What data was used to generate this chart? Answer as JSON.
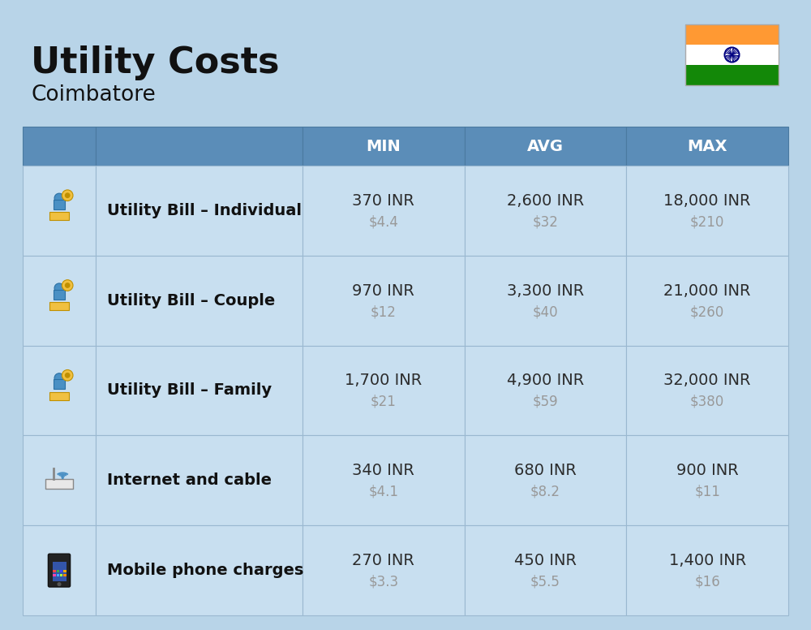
{
  "title": "Utility Costs",
  "subtitle": "Coimbatore",
  "bg_color": "#b8d4e8",
  "header_bg": "#5b8db8",
  "header_text": "#ffffff",
  "row_bg": "#c8dff0",
  "label_color": "#111111",
  "value_color": "#2c2c2c",
  "usd_color": "#999999",
  "border_color": "#9ab8d0",
  "columns": [
    "MIN",
    "AVG",
    "MAX"
  ],
  "rows": [
    {
      "label": "Utility Bill – Individual",
      "min_inr": "370 INR",
      "min_usd": "$4.4",
      "avg_inr": "2,600 INR",
      "avg_usd": "$32",
      "max_inr": "18,000 INR",
      "max_usd": "$210"
    },
    {
      "label": "Utility Bill – Couple",
      "min_inr": "970 INR",
      "min_usd": "$12",
      "avg_inr": "3,300 INR",
      "avg_usd": "$40",
      "max_inr": "21,000 INR",
      "max_usd": "$260"
    },
    {
      "label": "Utility Bill – Family",
      "min_inr": "1,700 INR",
      "min_usd": "$21",
      "avg_inr": "4,900 INR",
      "avg_usd": "$59",
      "max_inr": "32,000 INR",
      "max_usd": "$380"
    },
    {
      "label": "Internet and cable",
      "min_inr": "340 INR",
      "min_usd": "$4.1",
      "avg_inr": "680 INR",
      "avg_usd": "$8.2",
      "max_inr": "900 INR",
      "max_usd": "$11"
    },
    {
      "label": "Mobile phone charges",
      "min_inr": "270 INR",
      "min_usd": "$3.3",
      "avg_inr": "450 INR",
      "avg_usd": "$5.5",
      "max_inr": "1,400 INR",
      "max_usd": "$16"
    }
  ],
  "flag_saffron": "#FF9933",
  "flag_white": "#FFFFFF",
  "flag_green": "#138808",
  "flag_navy": "#000080"
}
